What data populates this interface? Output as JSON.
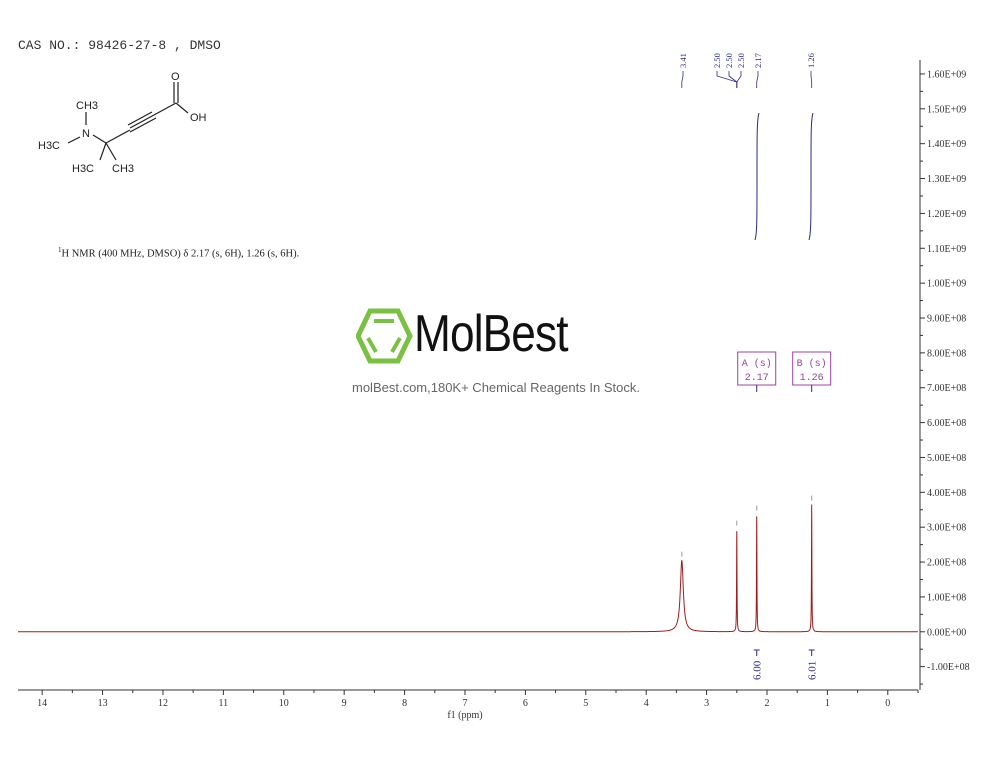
{
  "header": {
    "cas": "CAS NO.: 98426-27-8 , DMSO"
  },
  "structure": {
    "labels": [
      "CH3",
      "H3C",
      "N",
      "H3C",
      "CH3",
      "O",
      "OH"
    ]
  },
  "description": {
    "sup": "1",
    "text": "H NMR (400 MHz, DMSO) δ 2.17 (s, 6H), 1.26 (s, 6H)."
  },
  "watermark": {
    "brand": "MolBest",
    "tagline": "molBest.com,180K+ Chemical Reagents In Stock.",
    "color": "#7ac143"
  },
  "chart_data": {
    "type": "line",
    "xlabel": "f1 (ppm)",
    "xlim": [
      14.4,
      -0.5
    ],
    "ylim": [
      -167000000.0,
      1640000000.0
    ],
    "x_ticks": [
      14,
      13,
      12,
      11,
      10,
      9,
      8,
      7,
      6,
      5,
      4,
      3,
      2,
      1,
      0
    ],
    "y_ticks": [
      "-1.00E+08",
      "0.00E+00",
      "1.00E+08",
      "2.00E+08",
      "3.00E+08",
      "4.00E+08",
      "5.00E+08",
      "6.00E+08",
      "7.00E+08",
      "8.00E+08",
      "9.00E+08",
      "1.00E+09",
      "1.10E+09",
      "1.20E+09",
      "1.30E+09",
      "1.40E+09",
      "1.50E+09",
      "1.60E+09"
    ],
    "peaks": [
      {
        "ppm": 3.41,
        "height": 204000000.0,
        "width": 0.03
      },
      {
        "ppm": 2.5,
        "height": 293000000.0,
        "width": 0.004
      },
      {
        "ppm": 2.17,
        "height": 336000000.0,
        "width": 0.004
      },
      {
        "ppm": 1.26,
        "height": 365000000.0,
        "width": 0.004
      }
    ],
    "peak_labels": [
      "3.41",
      "2.50",
      "2.50",
      "2.50",
      "2.17",
      "1.26"
    ],
    "multiplets": [
      {
        "label": "A (s)",
        "shift": "2.17",
        "integral": "6.00"
      },
      {
        "label": "B (s)",
        "shift": "1.26",
        "integral": "6.01"
      }
    ],
    "colors": {
      "spectrum": "#a01c1c",
      "annotation": "#2a2a8a",
      "multiplet_box": "#a040a0"
    }
  }
}
